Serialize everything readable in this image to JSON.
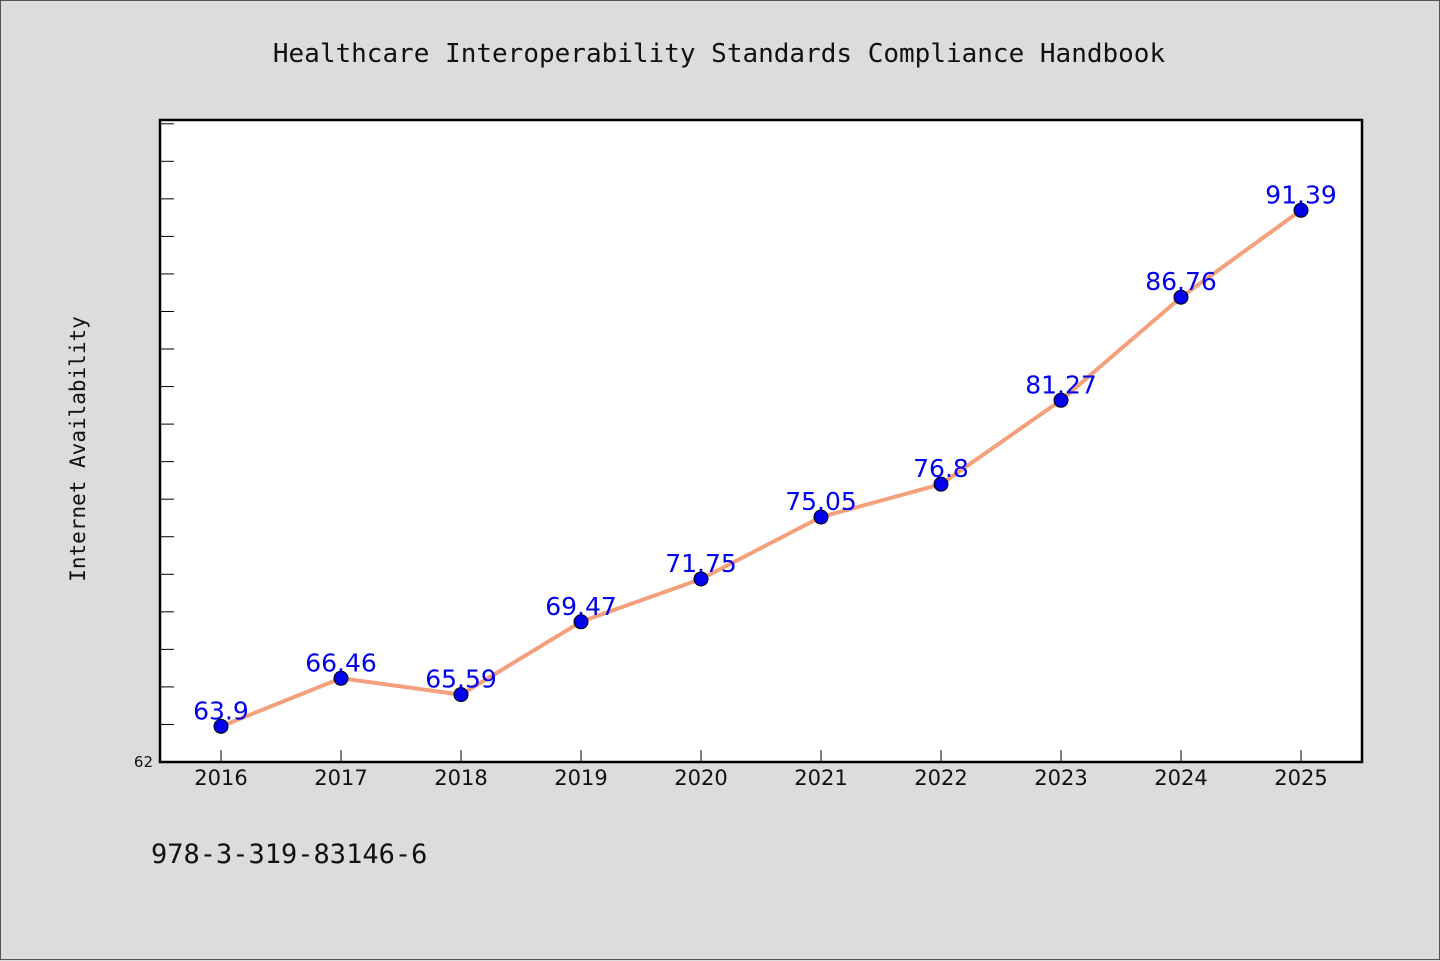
{
  "chart_data": {
    "type": "line",
    "title": "Healthcare Interoperability Standards Compliance Handbook",
    "xlabel": "",
    "ylabel": "Internet Availability",
    "categories": [
      "2016",
      "2017",
      "2018",
      "2019",
      "2020",
      "2021",
      "2022",
      "2023",
      "2024",
      "2025"
    ],
    "series": [
      {
        "values": [
          63.9,
          66.46,
          65.59,
          69.47,
          71.75,
          75.05,
          76.8,
          81.27,
          86.76,
          91.39
        ],
        "data_labels": [
          "63.9",
          "66.46",
          "65.59",
          "69.47",
          "71.75",
          "75.05",
          "76.8",
          "81.27",
          "86.76",
          "91.39"
        ]
      }
    ],
    "ylim": [
      62,
      96.2
    ],
    "y_min_label": "62",
    "grid": false,
    "legend": "none",
    "colors": {
      "line": "#f4a07c",
      "marker": "#0000ee",
      "data_label": "#0000ee",
      "background": "#dcdcdc",
      "plot_background": "#ffffff"
    }
  },
  "footer": {
    "isbn": "978-3-319-83146-6"
  }
}
